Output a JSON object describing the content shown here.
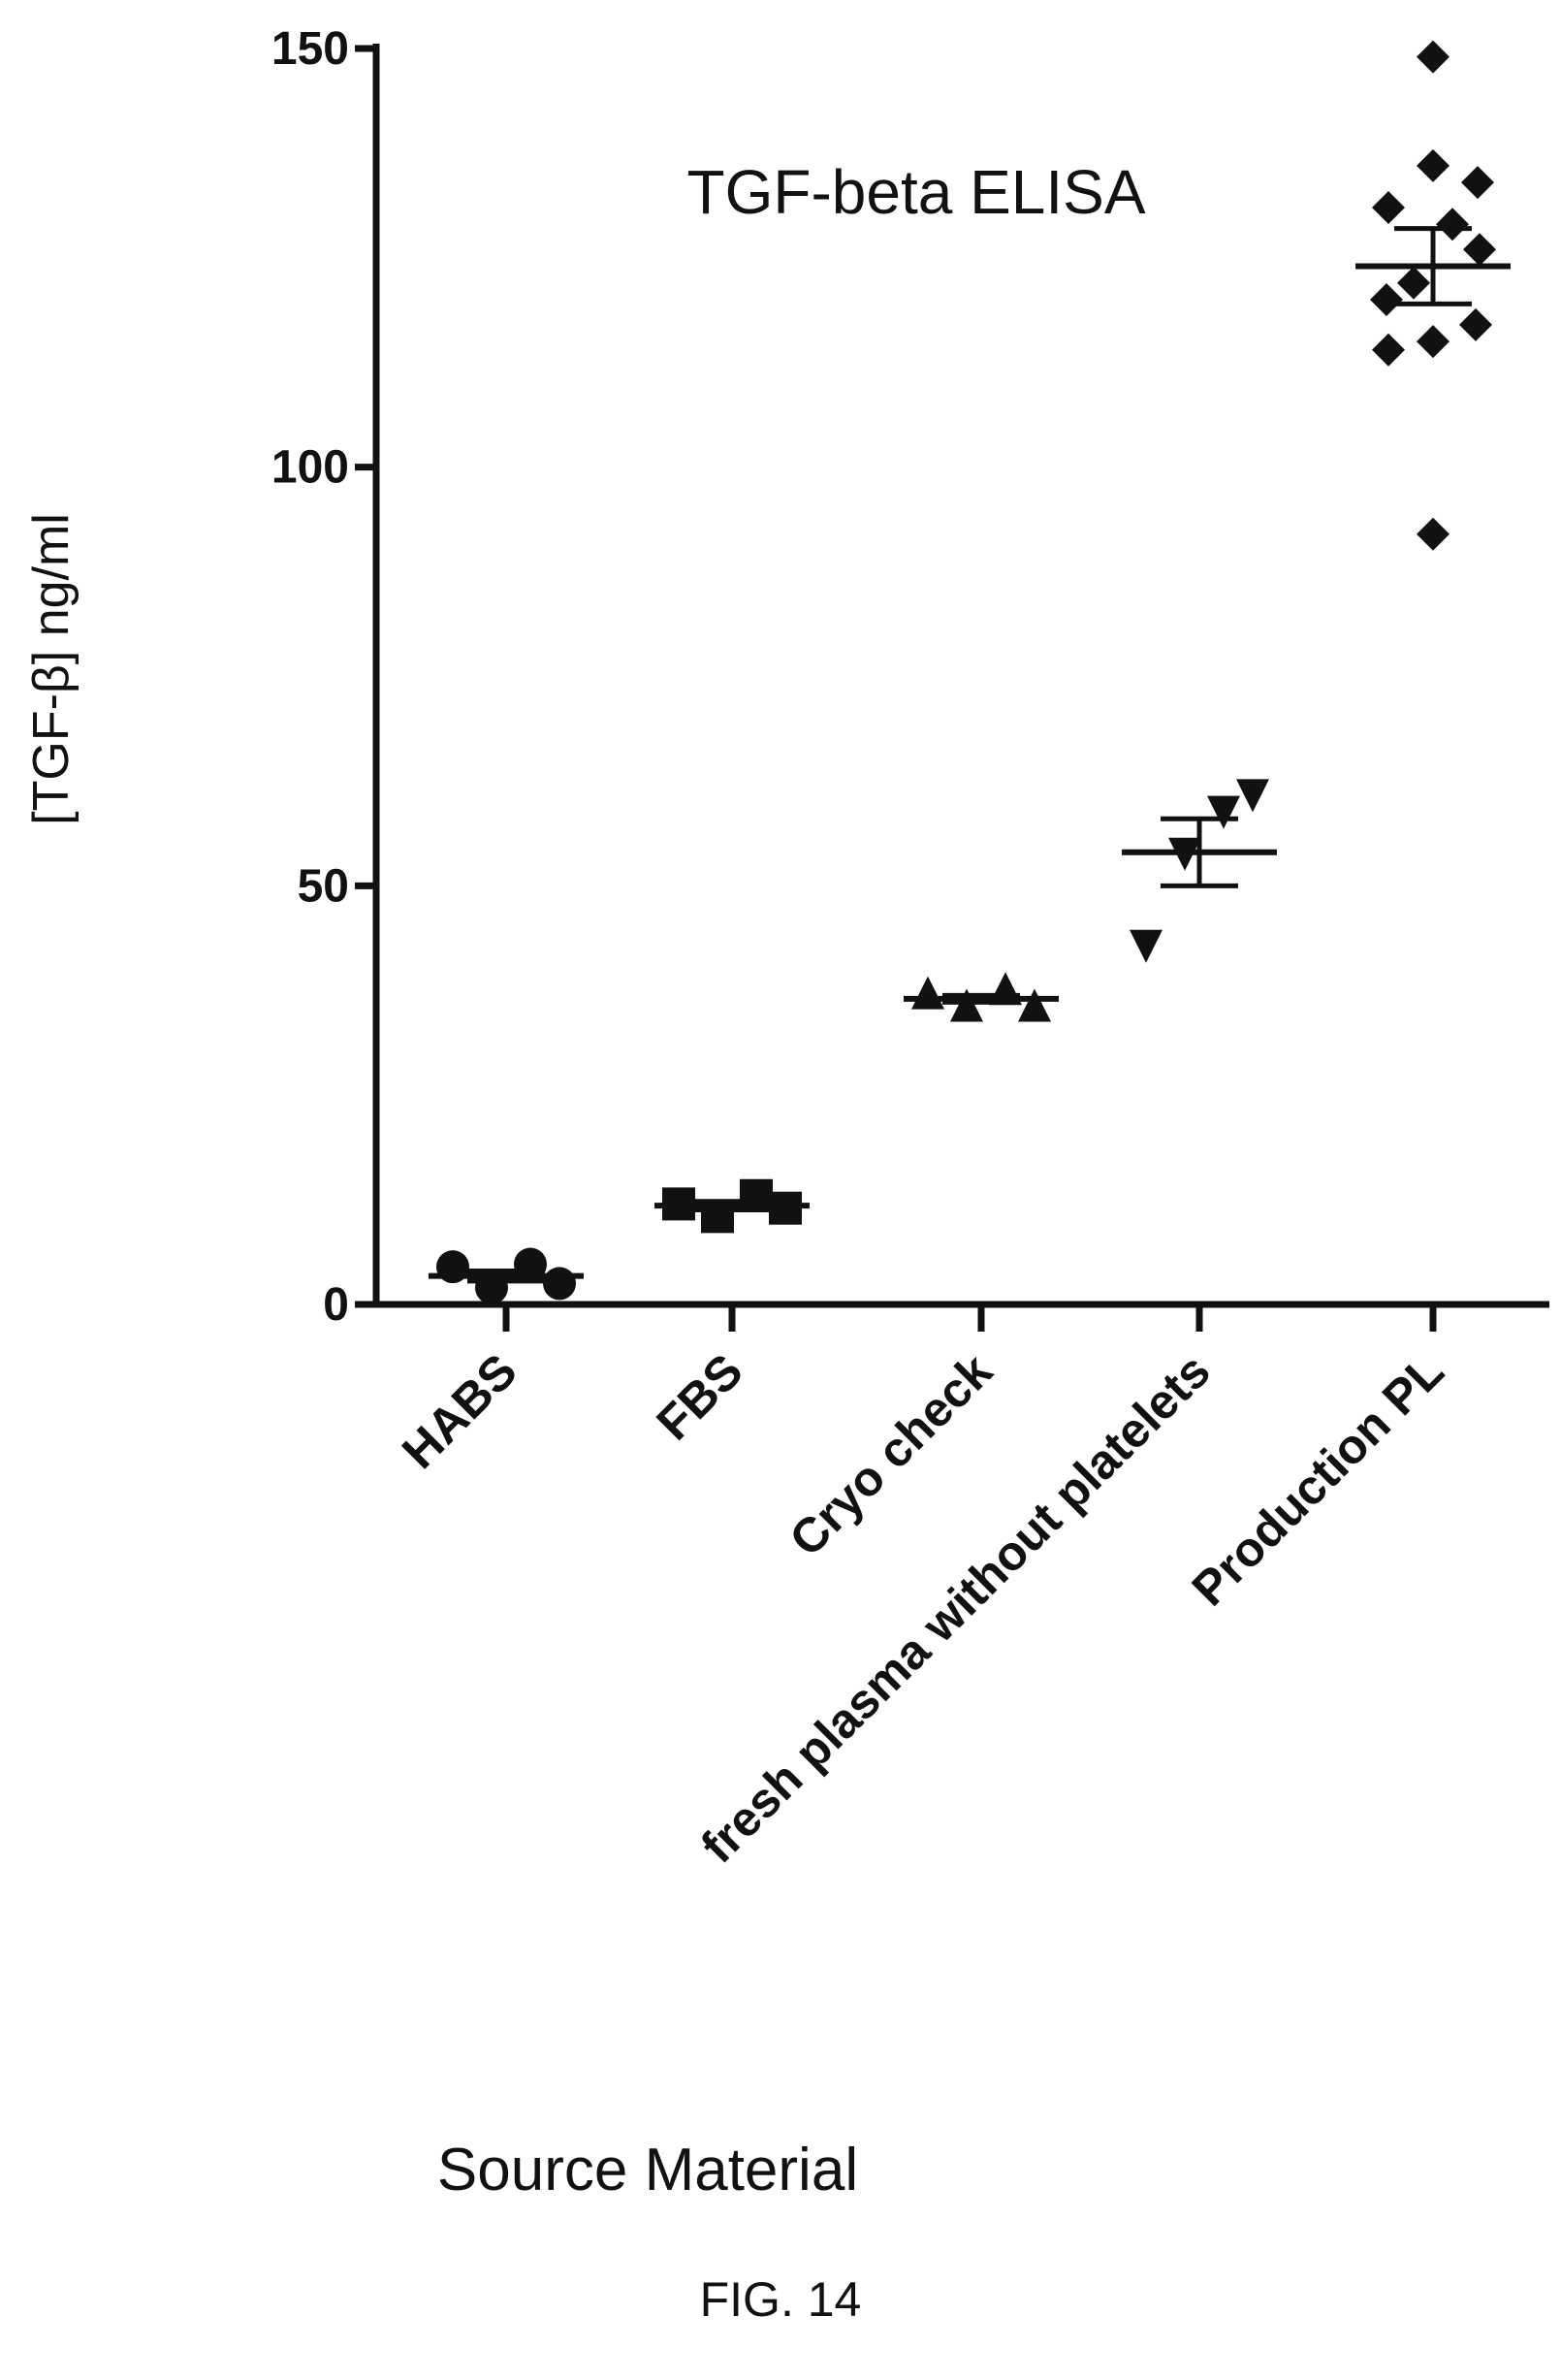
{
  "chart_data": {
    "type": "scatter",
    "title": "TGF-beta ELISA",
    "ylabel": "[TGF-β] ng/ml",
    "xlabel": "Source Material",
    "ylim": [
      0,
      150
    ],
    "yticks": [
      0,
      50,
      100,
      150
    ],
    "ytick_labels": [
      "0",
      "50",
      "100",
      "150"
    ],
    "categories": [
      "HABS",
      "FBS",
      "Cryo check",
      "fresh plasma without platelets",
      "Production PL"
    ],
    "series": [
      {
        "category": "HABS",
        "marker": "circle",
        "values": [
          4.5,
          2,
          4.8,
          2.5
        ],
        "mean": 3.4,
        "sem": 0.6
      },
      {
        "category": "FBS",
        "marker": "square",
        "values": [
          12,
          10.5,
          13,
          11.5
        ],
        "mean": 11.8,
        "sem": 0.5
      },
      {
        "category": "Cryo check",
        "marker": "triangle-up",
        "values": [
          37,
          35.5,
          37.5,
          35.5
        ],
        "mean": 36.5,
        "sem": 0.4
      },
      {
        "category": "fresh plasma without platelets",
        "marker": "triangle-down",
        "values": [
          43,
          54,
          59,
          61
        ],
        "mean": 54,
        "sem": 4
      },
      {
        "category": "Production PL",
        "marker": "diamond",
        "values": [
          149,
          136,
          134,
          131,
          129,
          126,
          122,
          120,
          117,
          115,
          114,
          92
        ],
        "mean": 124,
        "sem": 4.5
      }
    ],
    "grid": false,
    "legend": "none"
  },
  "caption": "FIG. 14"
}
